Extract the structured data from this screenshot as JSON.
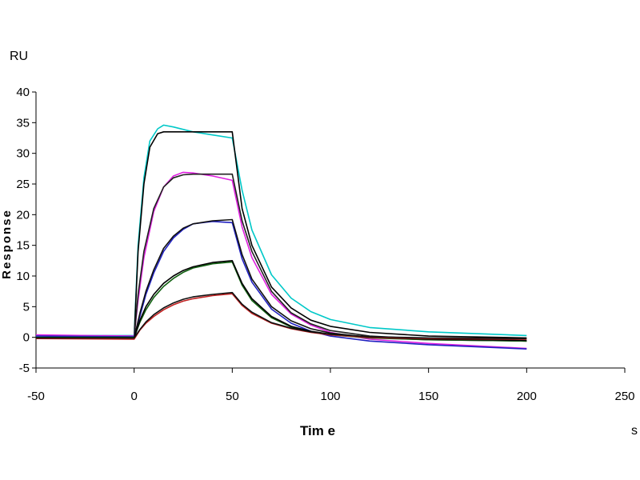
{
  "chart_data": {
    "type": "line",
    "title": "",
    "xlabel": "Tim e",
    "ylabel": "Response",
    "x_unit": "s",
    "y_unit": "RU",
    "xlim": [
      -50,
      250
    ],
    "ylim": [
      -5,
      40
    ],
    "x_ticks": [
      -50,
      0,
      50,
      100,
      150,
      200,
      250
    ],
    "y_ticks": [
      -5,
      0,
      5,
      10,
      15,
      20,
      25,
      30,
      35,
      40
    ],
    "grid": false,
    "legend": "none",
    "series": [
      {
        "color": "#00c8c8",
        "x": [
          -50,
          0,
          2,
          5,
          8,
          12,
          15,
          20,
          30,
          40,
          50,
          55,
          60,
          70,
          80,
          90,
          100,
          120,
          150,
          200
        ],
        "y": [
          0.3,
          0.3,
          15,
          26,
          32,
          34,
          34.6,
          34.3,
          33.5,
          33,
          32.5,
          24,
          17.5,
          10.2,
          6.4,
          4.2,
          2.9,
          1.6,
          0.9,
          0.3
        ]
      },
      {
        "color": "#000000",
        "x": [
          -50,
          0,
          2,
          5,
          8,
          12,
          15,
          20,
          30,
          40,
          50,
          55,
          60,
          70,
          80,
          90,
          100,
          120,
          150,
          200
        ],
        "y": [
          -0.1,
          -0.1,
          14,
          25,
          31,
          33.2,
          33.5,
          33.5,
          33.5,
          33.5,
          33.5,
          21,
          15,
          8.2,
          4.8,
          2.8,
          1.8,
          0.8,
          0.2,
          -0.1
        ]
      },
      {
        "color": "#e020e0",
        "x": [
          -50,
          0,
          2,
          5,
          10,
          15,
          20,
          25,
          30,
          40,
          50,
          55,
          60,
          70,
          80,
          90,
          100,
          120,
          150,
          200
        ],
        "y": [
          0.4,
          0.2,
          6,
          13,
          20.5,
          24.5,
          26.3,
          26.9,
          26.8,
          26.3,
          25.6,
          18,
          13,
          7,
          3.8,
          2,
          0.8,
          -0.3,
          -1,
          -1.8
        ]
      },
      {
        "color": "#202020",
        "x": [
          -50,
          0,
          2,
          5,
          10,
          15,
          20,
          25,
          30,
          40,
          50,
          55,
          60,
          70,
          80,
          90,
          100,
          120,
          150,
          200
        ],
        "y": [
          -0.1,
          -0.1,
          7,
          14,
          21,
          24.5,
          26,
          26.5,
          26.6,
          26.6,
          26.6,
          19,
          14,
          7.5,
          4,
          2.2,
          1.1,
          0.2,
          -0.3,
          -0.6
        ]
      },
      {
        "color": "#2020c0",
        "x": [
          -50,
          0,
          3,
          6,
          10,
          15,
          20,
          25,
          30,
          40,
          50,
          55,
          60,
          70,
          80,
          90,
          100,
          120,
          150,
          200
        ],
        "y": [
          0.2,
          0.1,
          3.5,
          7,
          10.5,
          14,
          16.2,
          17.6,
          18.5,
          18.9,
          18.7,
          12.8,
          9,
          4.6,
          2.3,
          1,
          0.2,
          -0.6,
          -1.2,
          -1.9
        ]
      },
      {
        "color": "#101010",
        "x": [
          -50,
          0,
          3,
          6,
          10,
          15,
          20,
          25,
          30,
          40,
          50,
          55,
          60,
          70,
          80,
          90,
          100,
          120,
          150,
          200
        ],
        "y": [
          -0.1,
          -0.1,
          4,
          7.5,
          11,
          14.5,
          16.5,
          17.8,
          18.5,
          19,
          19.2,
          13.5,
          9.5,
          5,
          2.7,
          1.4,
          0.7,
          0,
          -0.4,
          -0.6
        ]
      },
      {
        "color": "#106010",
        "x": [
          -50,
          0,
          3,
          6,
          10,
          15,
          20,
          25,
          30,
          40,
          50,
          55,
          60,
          70,
          80,
          90,
          100,
          120,
          150,
          200
        ],
        "y": [
          0,
          0,
          2.5,
          4.5,
          6.5,
          8.3,
          9.6,
          10.6,
          11.3,
          12,
          12.3,
          8.5,
          6,
          3.2,
          1.7,
          0.9,
          0.4,
          -0.1,
          -0.4,
          -0.6
        ]
      },
      {
        "color": "#000000",
        "x": [
          -50,
          0,
          3,
          6,
          10,
          15,
          20,
          25,
          30,
          40,
          50,
          55,
          60,
          70,
          80,
          90,
          100,
          120,
          150,
          200
        ],
        "y": [
          -0.1,
          -0.1,
          2.8,
          5,
          7,
          8.8,
          10,
          10.9,
          11.5,
          12.2,
          12.5,
          8.8,
          6.3,
          3.4,
          1.8,
          1,
          0.5,
          0,
          -0.3,
          -0.5
        ]
      },
      {
        "color": "#c02020",
        "x": [
          -50,
          0,
          3,
          6,
          10,
          15,
          20,
          25,
          30,
          40,
          50,
          55,
          60,
          70,
          80,
          90,
          100,
          120,
          150,
          200
        ],
        "y": [
          -0.2,
          -0.3,
          1.2,
          2.3,
          3.4,
          4.5,
          5.3,
          5.9,
          6.3,
          6.8,
          7.1,
          5.2,
          3.9,
          2.3,
          1.4,
          0.8,
          0.4,
          0,
          -0.2,
          -0.3
        ]
      },
      {
        "color": "#101010",
        "x": [
          -50,
          0,
          3,
          6,
          10,
          15,
          20,
          25,
          30,
          40,
          50,
          55,
          60,
          70,
          80,
          90,
          100,
          120,
          150,
          200
        ],
        "y": [
          -0.1,
          -0.1,
          1.3,
          2.5,
          3.7,
          4.8,
          5.6,
          6.2,
          6.6,
          7,
          7.3,
          5.4,
          4.1,
          2.4,
          1.5,
          0.9,
          0.5,
          0.1,
          -0.1,
          -0.2
        ]
      }
    ]
  }
}
